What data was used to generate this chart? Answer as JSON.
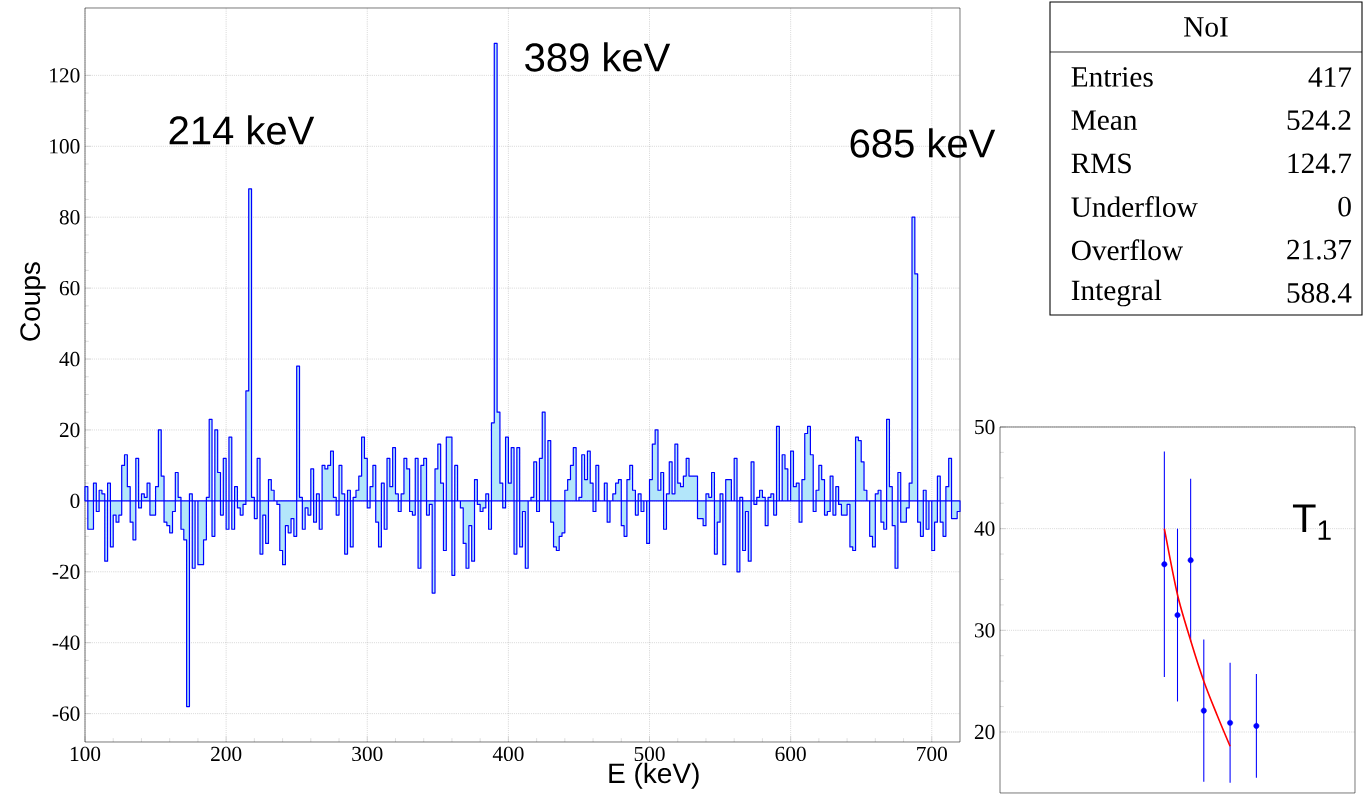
{
  "chart_data": [
    {
      "type": "histogram",
      "xlabel": "E (keV)",
      "ylabel": "Coups",
      "color": "#0000ff",
      "bins": [
        100,
        102,
        104,
        106,
        108,
        110,
        112,
        114,
        116,
        118,
        120,
        122,
        124,
        126,
        128,
        130,
        132,
        134,
        136,
        138,
        140,
        142,
        144,
        146,
        148,
        150,
        152,
        154,
        156,
        158,
        160,
        162,
        164,
        166,
        168,
        170,
        172,
        174,
        176,
        178,
        180,
        182,
        184,
        186,
        188,
        190,
        192,
        194,
        196,
        198,
        200,
        202,
        204,
        206,
        208,
        210,
        212,
        214,
        216,
        218,
        220,
        222,
        224,
        226,
        228,
        230,
        232,
        234,
        236,
        238,
        240,
        242,
        244,
        246,
        248,
        250,
        252,
        254,
        256,
        258,
        260,
        262,
        264,
        266,
        268,
        270,
        272,
        274,
        276,
        278,
        280,
        282,
        284,
        286,
        288,
        290,
        292,
        294,
        296,
        298,
        300,
        302,
        304,
        306,
        308,
        310,
        312,
        314,
        316,
        318,
        320,
        322,
        324,
        326,
        328,
        330,
        332,
        334,
        336,
        338,
        340,
        342,
        344,
        346,
        348,
        350,
        352,
        354,
        356,
        358,
        360,
        362,
        364,
        366,
        368,
        370,
        372,
        374,
        376,
        378,
        380,
        382,
        384,
        386,
        388,
        390,
        392,
        394,
        396,
        398,
        400,
        402,
        404,
        406,
        408,
        410,
        412,
        414,
        416,
        418,
        420,
        422,
        424,
        426,
        428,
        430,
        432,
        434,
        436,
        438,
        440,
        442,
        444,
        446,
        448,
        450,
        452,
        454,
        456,
        458,
        460,
        462,
        464,
        466,
        468,
        470,
        472,
        474,
        476,
        478,
        480,
        482,
        484,
        486,
        488,
        490,
        492,
        494,
        496,
        498,
        500,
        502,
        504,
        506,
        508,
        510,
        512,
        514,
        516,
        518,
        520,
        522,
        524,
        526,
        528,
        530,
        532,
        534,
        536,
        538,
        540,
        542,
        544,
        546,
        548,
        550,
        552,
        554,
        556,
        558,
        560,
        562,
        564,
        566,
        568,
        570,
        572,
        574,
        576,
        578,
        580,
        582,
        584,
        586,
        588,
        590,
        592,
        594,
        596,
        598,
        600,
        602,
        604,
        606,
        608,
        610,
        612,
        614,
        616,
        618,
        620,
        622,
        624,
        626,
        628,
        630,
        632,
        634,
        636,
        638,
        640,
        642,
        644,
        646,
        648,
        650,
        652,
        654,
        656,
        658,
        660,
        662,
        664,
        666,
        668,
        670,
        672,
        674,
        676,
        678,
        680,
        682,
        684,
        686,
        688,
        690,
        692,
        694,
        696,
        698,
        700,
        702,
        704,
        706,
        708,
        710,
        712,
        714,
        716,
        718,
        720
      ],
      "values": [
        4,
        -8,
        -8,
        5,
        -3,
        3,
        2,
        -17,
        5,
        -13,
        -4,
        -6,
        -4,
        10,
        13,
        4,
        -6,
        -11,
        12,
        -2,
        2,
        1,
        5,
        -4,
        -4,
        4,
        20,
        7,
        -6,
        -7,
        -9,
        -3,
        8,
        1,
        -8,
        -11,
        -58,
        2,
        -19,
        0,
        -18,
        -18,
        -11,
        1,
        23,
        -10,
        20,
        8,
        -4,
        12,
        -8,
        18,
        -8,
        4,
        -2,
        -4,
        -1,
        31,
        88,
        1,
        -5,
        12,
        -15,
        -4,
        -12,
        6,
        3,
        0,
        -1,
        -14,
        -18,
        -7,
        -9,
        -5,
        -10,
        38,
        1,
        -8,
        -2,
        -4,
        9,
        -6,
        2,
        -8,
        10,
        9,
        10,
        14,
        1,
        -4,
        10,
        2,
        -15,
        3,
        -13,
        1,
        3,
        7,
        18,
        12,
        -2,
        4,
        10,
        -6,
        -13,
        5,
        -8,
        12,
        4,
        15,
        2,
        -3,
        2,
        12,
        9,
        -3,
        -4,
        12,
        -19,
        10,
        12,
        -4,
        -1,
        -26,
        9,
        16,
        5,
        -14,
        18,
        18,
        -21,
        10,
        0,
        -2,
        -12,
        -19,
        -7,
        -17,
        6,
        -1,
        -3,
        -2,
        2,
        -8,
        22,
        129,
        25,
        5,
        -2,
        18,
        5,
        15,
        -15,
        15,
        -13,
        -3,
        -19,
        0,
        1,
        11,
        -3,
        12,
        25,
        0,
        17,
        -6,
        -13,
        -14,
        -10,
        -9,
        3,
        6,
        10,
        15,
        0,
        1,
        13,
        6,
        14,
        5,
        -3,
        10,
        0,
        0,
        5,
        -6,
        0,
        2,
        5,
        6,
        -7,
        -10,
        6,
        10,
        3,
        -4,
        2,
        -3,
        0,
        -12,
        6,
        16,
        20,
        3,
        8,
        -8,
        2,
        11,
        2,
        16,
        5,
        4,
        7,
        12,
        7,
        7,
        7,
        -5,
        -5,
        -7,
        2,
        1,
        8,
        -15,
        -6,
        2,
        -18,
        6,
        6,
        0,
        12,
        -20,
        1,
        -14,
        -3,
        -17,
        11,
        -1,
        1,
        3,
        1,
        -7,
        1,
        2,
        -4,
        21,
        0,
        13,
        9,
        0,
        14,
        4,
        5,
        -6,
        6,
        19,
        21,
        13,
        -3,
        3,
        10,
        6,
        -4,
        -3,
        7,
        -4,
        4,
        -1,
        -4,
        -4,
        -1,
        -13,
        -14,
        18,
        17,
        11,
        3,
        0,
        -10,
        -13,
        2,
        3,
        -6,
        -8,
        23,
        4,
        -7,
        -19,
        8,
        -6,
        -6,
        -2,
        5,
        80,
        64,
        -6,
        -10,
        3,
        -8,
        0,
        -14,
        -6,
        7,
        -6,
        -10,
        4,
        12,
        -5,
        -5,
        -3
      ],
      "xlim": [
        100,
        720
      ],
      "ylim": [
        -68,
        139
      ],
      "xticks": [
        100,
        200,
        300,
        400,
        500,
        600,
        700
      ],
      "yticks": [
        -60,
        -40,
        -20,
        0,
        20,
        40,
        60,
        80,
        100,
        120
      ],
      "grid": true,
      "annotations": [
        "214 keV",
        "389 keV",
        "685 keV",
        "NoI",
        "Entries",
        "417",
        "Mean",
        "524.2",
        "RMS",
        "124.7",
        "Underflow",
        "0",
        "Overflow",
        "21.37",
        "Integral",
        "588.4"
      ]
    },
    {
      "type": "scatter",
      "categories": [
        null,
        null,
        null,
        null,
        null,
        null,
        null,
        null,
        null,
        null,
        null,
        null,
        null,
        null,
        null,
        null,
        null,
        null,
        null,
        null,
        null,
        null,
        null,
        null,
        null,
        null,
        null
      ],
      "ylim": [
        14,
        50
      ],
      "yticks": [
        20,
        30,
        40,
        50
      ],
      "grid": "y",
      "annotations": [
        "T$_{1}$"
      ],
      "series": [
        {
          "type": "scatter",
          "color": "#0000ff",
          "values": [
            null,
            null,
            null,
            null,
            null,
            null,
            null,
            null,
            null,
            null,
            null,
            null,
            36.5,
            31.5,
            36.9,
            22.1,
            null,
            20.9,
            null,
            20.6,
            null,
            null,
            null,
            null,
            null,
            null,
            null
          ],
          "errors": [
            null,
            null,
            null,
            null,
            null,
            null,
            null,
            null,
            null,
            null,
            null,
            null,
            11.1,
            8.5,
            8,
            7,
            null,
            5.9,
            null,
            5.1,
            null,
            null,
            null,
            null,
            null,
            null,
            null
          ]
        },
        {
          "type": "line",
          "color": "#ff0000",
          "values": [
            null,
            null,
            null,
            null,
            null,
            null,
            null,
            null,
            null,
            null,
            null,
            null,
            40.0,
            33.5,
            29,
            25,
            21.7,
            18.6,
            null,
            null,
            null,
            null,
            null,
            null,
            null,
            null,
            null
          ]
        }
      ]
    }
  ]
}
